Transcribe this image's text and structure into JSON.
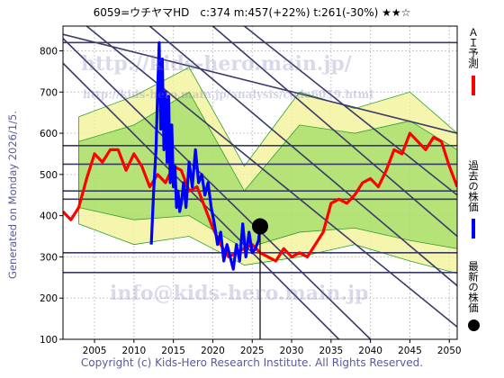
{
  "header": {
    "title": "6059=ウチヤマHD　c:374  m:457(+22%)  t:261(-30%)  ★★☆"
  },
  "side_label": "Generated on Monday 2026/1/5.",
  "watermarks": {
    "url1": "http://kids-hero.main.jp/",
    "url2": "http://kids-hero.main.jp/analysis/code6059.html",
    "email": "info@kids-hero.main.jp"
  },
  "legend": {
    "ai": "ＡＩ予測",
    "past": "過去の株価",
    "latest": "最新の株価"
  },
  "footer": {
    "copyright": "Copyright (c) Kids-Hero Research Institute. All Rights Reserved."
  },
  "colors": {
    "ai_prediction": "#ff0000",
    "past_price": "#0000ff",
    "latest_price": "#000000",
    "band_green": "#7fd44c",
    "band_yellow": "#f2f29a",
    "lines": "#3a3a6a"
  },
  "chart_data": {
    "type": "line",
    "xlim": [
      2001,
      2051
    ],
    "ylim": [
      100,
      860
    ],
    "x_ticks": [
      2005,
      2010,
      2015,
      2020,
      2025,
      2030,
      2035,
      2040,
      2045,
      2050
    ],
    "y_ticks": [
      100,
      200,
      300,
      400,
      500,
      600,
      700,
      800
    ],
    "grid": true,
    "horizontal_levels": [
      820,
      570,
      525,
      460,
      440,
      310,
      262
    ],
    "diagonal_lines": [
      {
        "from": [
          2001,
          840
        ],
        "to": [
          2051,
          600
        ]
      },
      {
        "from": [
          2001,
          830
        ],
        "to": [
          2040,
          100
        ]
      },
      {
        "from": [
          2001,
          770
        ],
        "to": [
          2036,
          100
        ]
      },
      {
        "from": [
          2004,
          860
        ],
        "to": [
          2051,
          130
        ]
      },
      {
        "from": [
          2012,
          860
        ],
        "to": [
          2051,
          230
        ]
      },
      {
        "from": [
          2020,
          860
        ],
        "to": [
          2051,
          350
        ]
      },
      {
        "from": [
          2024,
          860
        ],
        "to": [
          2051,
          450
        ]
      }
    ],
    "latest_point": {
      "x": 2026,
      "y": 374
    },
    "series": [
      {
        "name": "ＡＩ予測",
        "x": [
          2001,
          2002,
          2003,
          2004,
          2005,
          2006,
          2007,
          2008,
          2009,
          2010,
          2011,
          2012,
          2013,
          2014,
          2015,
          2016,
          2017,
          2018,
          2019,
          2020,
          2021,
          2022,
          2023,
          2024,
          2025,
          2026,
          2027,
          2028,
          2029,
          2030,
          2031,
          2032,
          2033,
          2034,
          2035,
          2036,
          2037,
          2038,
          2039,
          2040,
          2041,
          2042,
          2043,
          2044,
          2045,
          2046,
          2047,
          2048,
          2049,
          2050,
          2051
        ],
        "y": [
          410,
          390,
          420,
          490,
          550,
          530,
          560,
          560,
          510,
          550,
          520,
          470,
          500,
          480,
          520,
          510,
          460,
          470,
          420,
          370,
          330,
          300,
          310,
          320,
          330,
          310,
          300,
          290,
          320,
          300,
          310,
          300,
          330,
          360,
          430,
          440,
          430,
          450,
          480,
          490,
          470,
          510,
          560,
          550,
          600,
          580,
          560,
          590,
          580,
          520,
          470
        ]
      },
      {
        "name": "過去の株価",
        "x": [
          2012.2,
          2012.5,
          2012.8,
          2013.0,
          2013.2,
          2013.4,
          2013.6,
          2013.8,
          2014.0,
          2014.2,
          2014.4,
          2014.6,
          2014.8,
          2015.0,
          2015.2,
          2015.4,
          2015.6,
          2015.8,
          2016.0,
          2016.3,
          2016.6,
          2017.0,
          2017.4,
          2017.8,
          2018.2,
          2018.6,
          2019.0,
          2019.4,
          2019.8,
          2020.2,
          2020.6,
          2021.0,
          2021.4,
          2021.8,
          2022.2,
          2022.6,
          2023.0,
          2023.4,
          2023.8,
          2024.2,
          2024.6,
          2025.0,
          2025.4,
          2025.8,
          2026.0
        ],
        "y": [
          330,
          460,
          560,
          700,
          820,
          610,
          780,
          560,
          700,
          530,
          690,
          480,
          620,
          470,
          520,
          420,
          460,
          410,
          430,
          480,
          420,
          530,
          470,
          560,
          480,
          500,
          450,
          480,
          420,
          380,
          330,
          360,
          290,
          330,
          300,
          270,
          330,
          290,
          380,
          300,
          360,
          310,
          320,
          340,
          374
        ]
      }
    ],
    "bands": [
      {
        "x": [
          2003,
          2010,
          2017,
          2024,
          2031,
          2038,
          2045,
          2051
        ],
        "low": [
          380,
          330,
          350,
          280,
          300,
          330,
          290,
          260
        ],
        "high": [
          640,
          690,
          760,
          520,
          700,
          660,
          700,
          600
        ]
      },
      {
        "x": [
          2003,
          2010,
          2017,
          2024,
          2031,
          2038,
          2045,
          2051
        ],
        "low": [
          420,
          390,
          400,
          320,
          360,
          370,
          340,
          320
        ],
        "high": [
          580,
          620,
          700,
          460,
          620,
          600,
          630,
          560
        ]
      }
    ]
  }
}
